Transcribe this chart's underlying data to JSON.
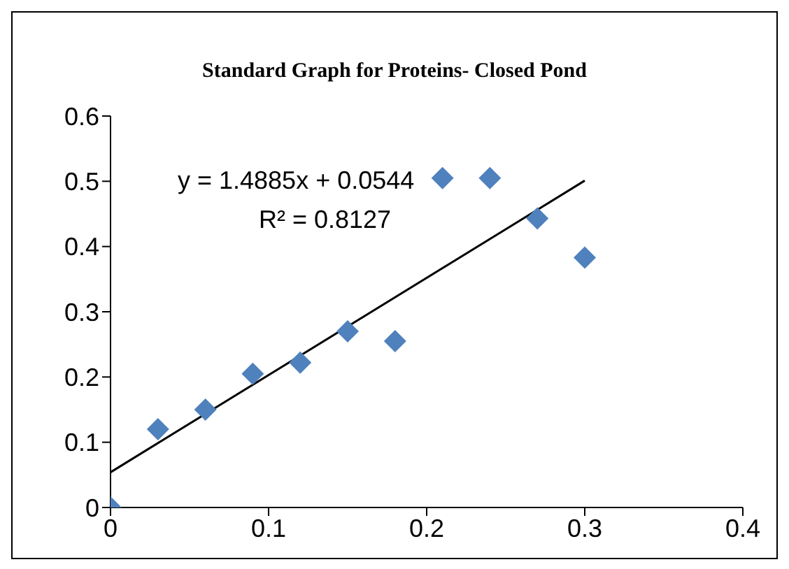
{
  "chart_data": {
    "type": "scatter",
    "title": "Standard Graph for Proteins- Closed Pond",
    "xlim": [
      0,
      0.4
    ],
    "xticks": [
      0,
      0.1,
      0.2,
      0.3,
      0.4
    ],
    "ylim": [
      0,
      0.6
    ],
    "yticks": [
      0,
      0.1,
      0.2,
      0.3,
      0.4,
      0.5,
      0.6
    ],
    "grid": false,
    "legend": false,
    "marker": "diamond",
    "series": [
      {
        "color": "#4f81bd",
        "x": [
          0,
          0.03,
          0.06,
          0.09,
          0.12,
          0.15,
          0.18,
          0.21,
          0.24,
          0.27,
          0.3
        ],
        "values": [
          0,
          0.12,
          0.15,
          0.205,
          0.222,
          0.27,
          0.255,
          0.505,
          0.505,
          0.443,
          0.383
        ]
      },
      {
        "type": "line",
        "color": "#000000",
        "marker": "none",
        "x": [
          0,
          0.3
        ],
        "values": [
          0.054,
          0.501
        ]
      }
    ],
    "annotations": [
      "y = 1.4885x + 0.0544",
      "R² = 0.8127"
    ]
  }
}
